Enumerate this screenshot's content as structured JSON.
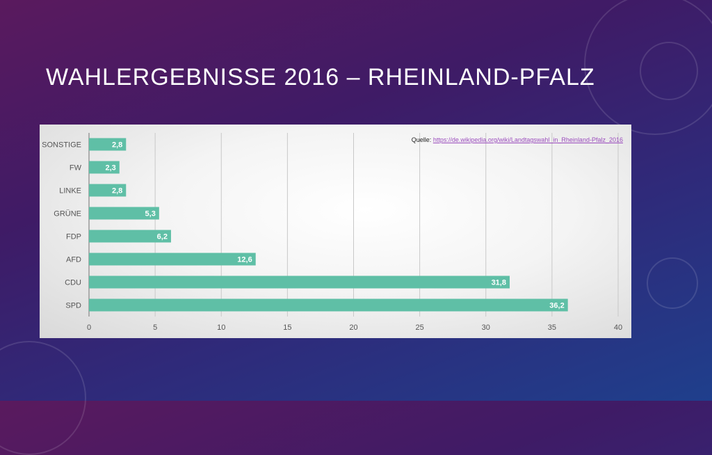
{
  "slide": {
    "title": "WAHLERGEBNISSE 2016 – RHEINLAND-PFALZ"
  },
  "source": {
    "label": "Quelle: ",
    "link_text": "https://de.wikipedia.org/wiki/Landtagswahl_in_Rheinland-Pfalz_2016"
  },
  "colors": {
    "bar": "#5fbfa6",
    "grid": "#c8c8c8",
    "axis": "#9a9a9a"
  },
  "chart_data": {
    "type": "bar",
    "orientation": "horizontal",
    "categories": [
      "SONSTIGE",
      "FW",
      "LINKE",
      "GRÜNE",
      "FDP",
      "AFD",
      "CDU",
      "SPD"
    ],
    "values": [
      2.8,
      2.3,
      2.8,
      5.3,
      6.2,
      12.6,
      31.8,
      36.2
    ],
    "value_labels": [
      "2,8",
      "2,3",
      "2,8",
      "5,3",
      "6,2",
      "12,6",
      "31,8",
      "36,2"
    ],
    "xlim": [
      0,
      40
    ],
    "xticks": [
      0,
      5,
      10,
      15,
      20,
      25,
      30,
      35,
      40
    ],
    "grid": true,
    "title": "",
    "xlabel": "",
    "ylabel": ""
  }
}
